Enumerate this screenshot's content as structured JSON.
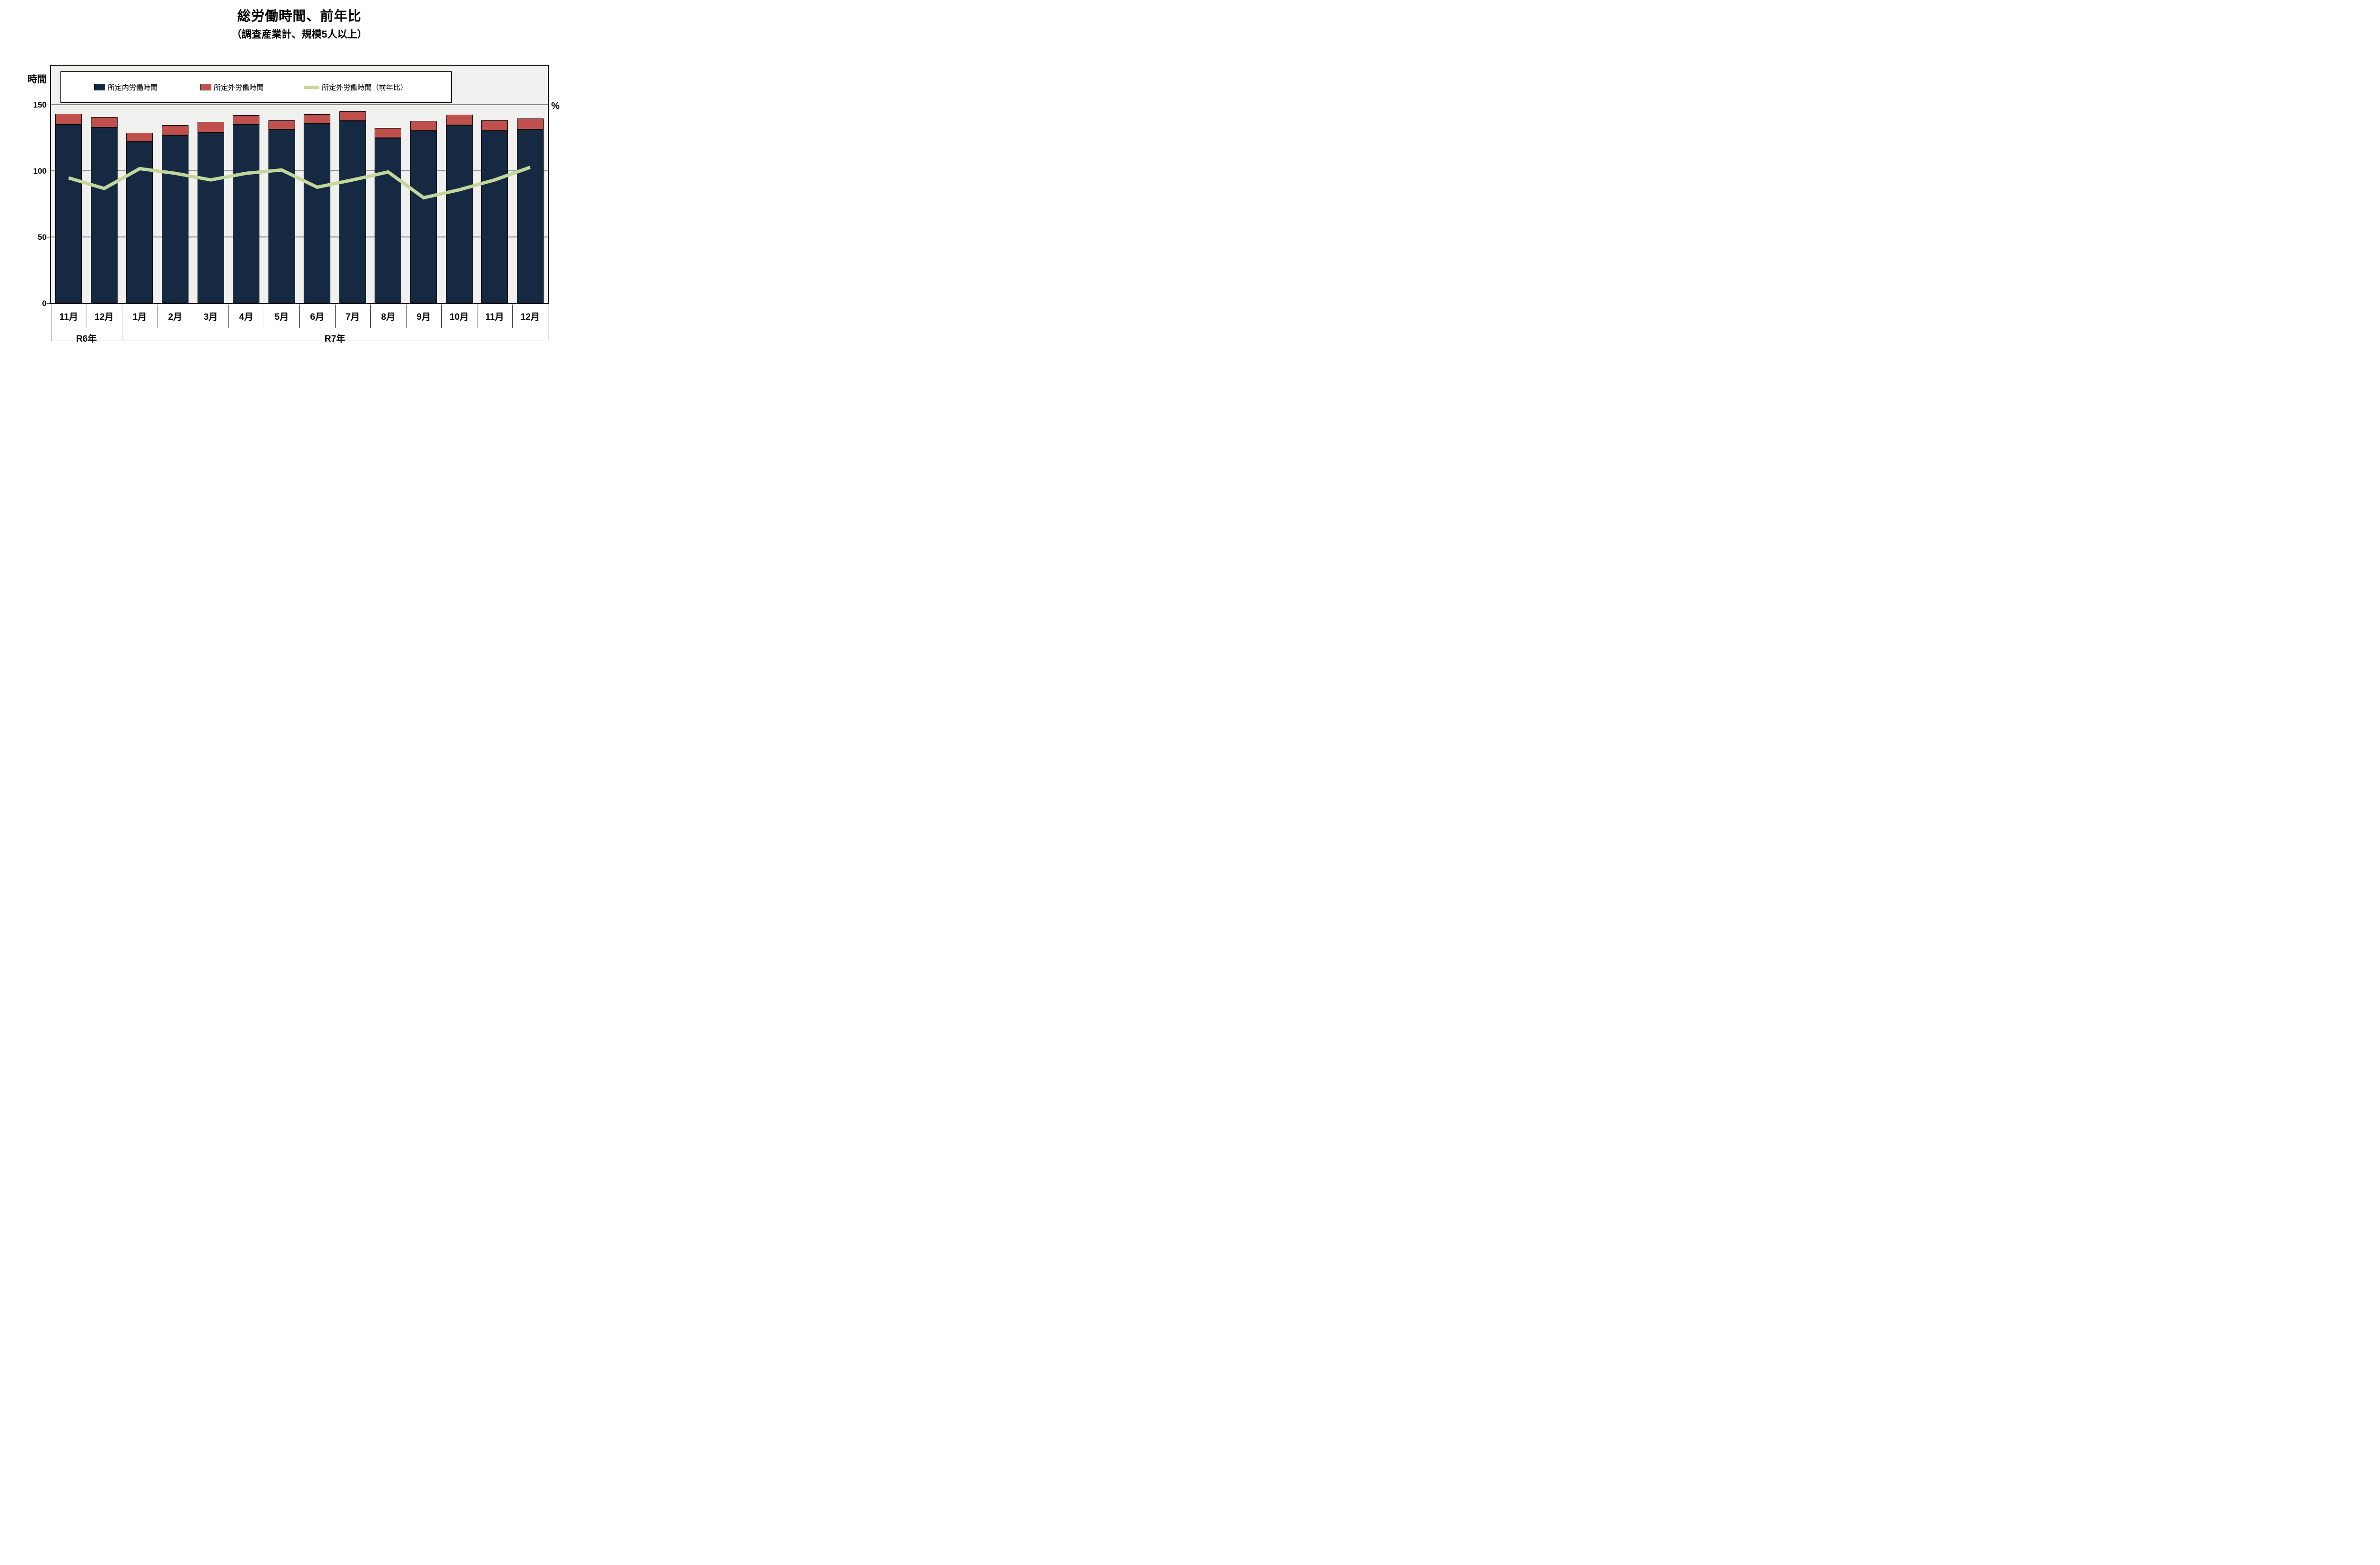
{
  "title": "総労働時間、前年比",
  "subtitle": "（調査産業計、規模5人以上）",
  "left_axis": {
    "title": "時間",
    "tick_labels": [
      "0",
      "50",
      "100",
      "150"
    ]
  },
  "right_axis": {
    "title": "%"
  },
  "legend": {
    "items": [
      {
        "label": "所定内労働時間",
        "swatch": "navy-square",
        "color": "#152A42"
      },
      {
        "label": "所定外労働時間",
        "swatch": "red-square",
        "color": "#C0504D"
      },
      {
        "label": "所定外労働時間（前年比）",
        "swatch": "green-line",
        "color": "#C3D69B"
      }
    ]
  },
  "x_axis": {
    "year_groups": [
      {
        "label": "R6年",
        "months": [
          "11月",
          "12月"
        ]
      },
      {
        "label": "R7年",
        "months": [
          "1月",
          "2月",
          "3月",
          "4月",
          "5月",
          "6月",
          "7月",
          "8月",
          "9月",
          "10月",
          "11月",
          "12月"
        ]
      }
    ]
  },
  "chart_data": {
    "type": "combo_stacked_bar_line",
    "categories": [
      "11月",
      "12月",
      "1月",
      "2月",
      "3月",
      "4月",
      "5月",
      "6月",
      "7月",
      "8月",
      "9月",
      "10月",
      "11月",
      "12月"
    ],
    "category_groups": [
      {
        "label": "R6年",
        "span": 2
      },
      {
        "label": "R7年",
        "span": 12
      }
    ],
    "series": [
      {
        "name": "所定内労働時間",
        "type": "bar",
        "stack": "hours",
        "axis": "left",
        "color": "#152A42",
        "values": [
          135.3,
          132.8,
          122.2,
          127.0,
          129.4,
          134.9,
          131.3,
          136.1,
          137.9,
          124.9,
          130.3,
          134.8,
          130.5,
          131.4
        ]
      },
      {
        "name": "所定外労働時間",
        "type": "bar",
        "stack": "hours",
        "axis": "left",
        "color": "#C0504D",
        "values": [
          8.0,
          8.1,
          6.9,
          7.6,
          7.9,
          7.5,
          6.9,
          6.9,
          7.2,
          7.5,
          7.8,
          8.0,
          7.8,
          8.4
        ]
      },
      {
        "name": "所定外労働時間（前年比）",
        "type": "line",
        "axis": "right",
        "color": "#C3D69B",
        "values": [
          95.0,
          87.0,
          102.0,
          98.5,
          93.5,
          98.5,
          101.0,
          88.0,
          93.5,
          99.5,
          80.0,
          86.0,
          93.5,
          103.0
        ]
      }
    ],
    "ylabel_left": "時間",
    "ylabel_right": "%",
    "y_ticks": [
      0,
      50,
      100,
      150
    ],
    "ylim": [
      0,
      179.5
    ],
    "right_axis_same_numeric_scale_as_left": true,
    "grid": "horizontal gridlines at 50, 100, 150",
    "legend_position": "top-center inside plot, white box",
    "plot_bg": "#F0F0EF",
    "grid_color": "#878787"
  }
}
